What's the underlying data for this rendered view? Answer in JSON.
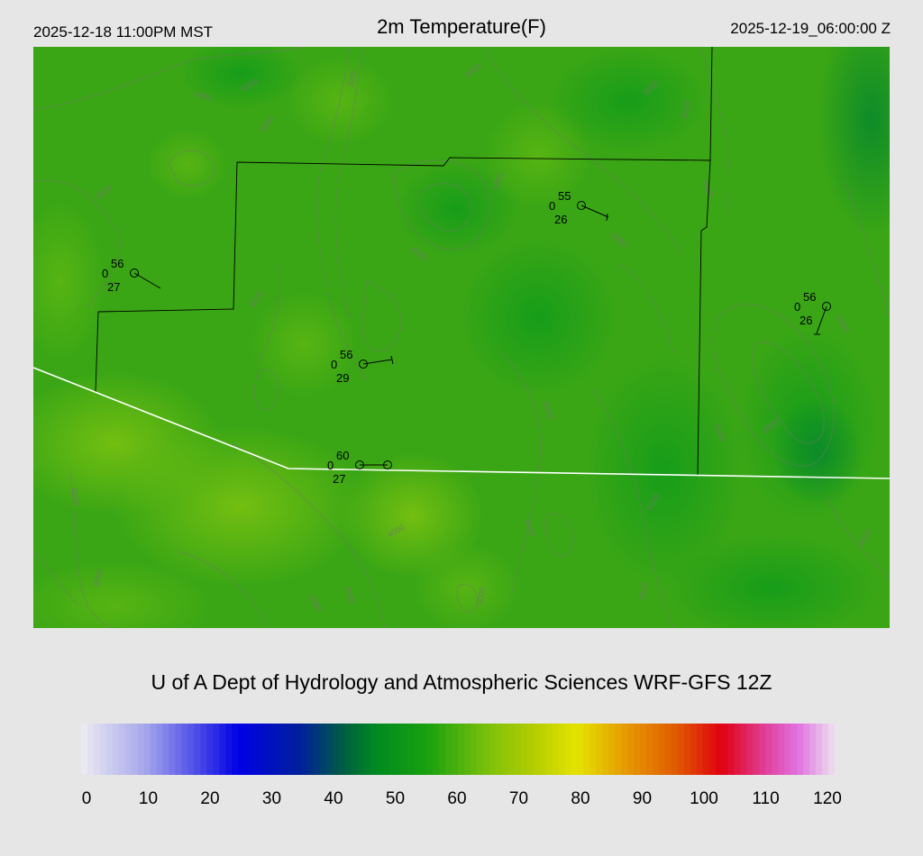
{
  "header": {
    "valid_local": "2025-12-18 11:00PM MST",
    "title": "2m Temperature(F)",
    "valid_utc": "2025-12-19_06:00:00 Z"
  },
  "credit": "U of A Dept of Hydrology and Atmospheric Sciences WRF-GFS 12Z",
  "colors": {
    "background": "#e6e6e6",
    "field_base": "#3aa615",
    "boundary_county": "#000000",
    "boundary_state": "#ffffff",
    "terrain_contour": "#6e7a66"
  },
  "contour_labels": [
    "4000",
    "4000",
    "3000",
    "4000",
    "3500",
    "5000",
    "5000",
    "3500",
    "4500",
    "5000",
    "5000",
    "3500",
    "4500",
    "5000",
    "5000",
    "4500",
    "4500",
    "6000",
    "3500",
    "3000",
    "4500",
    "4000",
    "5000",
    "4500",
    "5000",
    "5500",
    "4500"
  ],
  "stations": [
    {
      "id": "st1",
      "temp": "56",
      "precip": "0",
      "dewpoint": "27"
    },
    {
      "id": "st2",
      "temp": "55",
      "precip": "0",
      "dewpoint": "26"
    },
    {
      "id": "st3",
      "temp": "56",
      "precip": "0",
      "dewpoint": "26"
    },
    {
      "id": "st4",
      "temp": "56",
      "precip": "0",
      "dewpoint": "29"
    },
    {
      "id": "st5",
      "temp": "60",
      "precip": "0",
      "dewpoint": "27"
    }
  ],
  "colorbar": {
    "labels": [
      "0",
      "10",
      "20",
      "30",
      "40",
      "50",
      "60",
      "70",
      "80",
      "90",
      "100",
      "110",
      "120"
    ],
    "min": 0,
    "max": 120,
    "stops": [
      {
        "v": 0,
        "c": "#ecebf3"
      },
      {
        "v": 10,
        "c": "#a8a8ec"
      },
      {
        "v": 20,
        "c": "#3a3ae6"
      },
      {
        "v": 25,
        "c": "#0000e6"
      },
      {
        "v": 35,
        "c": "#00209a"
      },
      {
        "v": 42,
        "c": "#006040"
      },
      {
        "v": 47,
        "c": "#008a20"
      },
      {
        "v": 55,
        "c": "#18a010"
      },
      {
        "v": 65,
        "c": "#7ec10a"
      },
      {
        "v": 72,
        "c": "#b4cc00"
      },
      {
        "v": 79,
        "c": "#e4e400"
      },
      {
        "v": 86,
        "c": "#e6a000"
      },
      {
        "v": 95,
        "c": "#e05800"
      },
      {
        "v": 102,
        "c": "#e00010"
      },
      {
        "v": 109,
        "c": "#e0409a"
      },
      {
        "v": 114,
        "c": "#e070e0"
      },
      {
        "v": 120,
        "c": "#eee0ee"
      }
    ]
  }
}
